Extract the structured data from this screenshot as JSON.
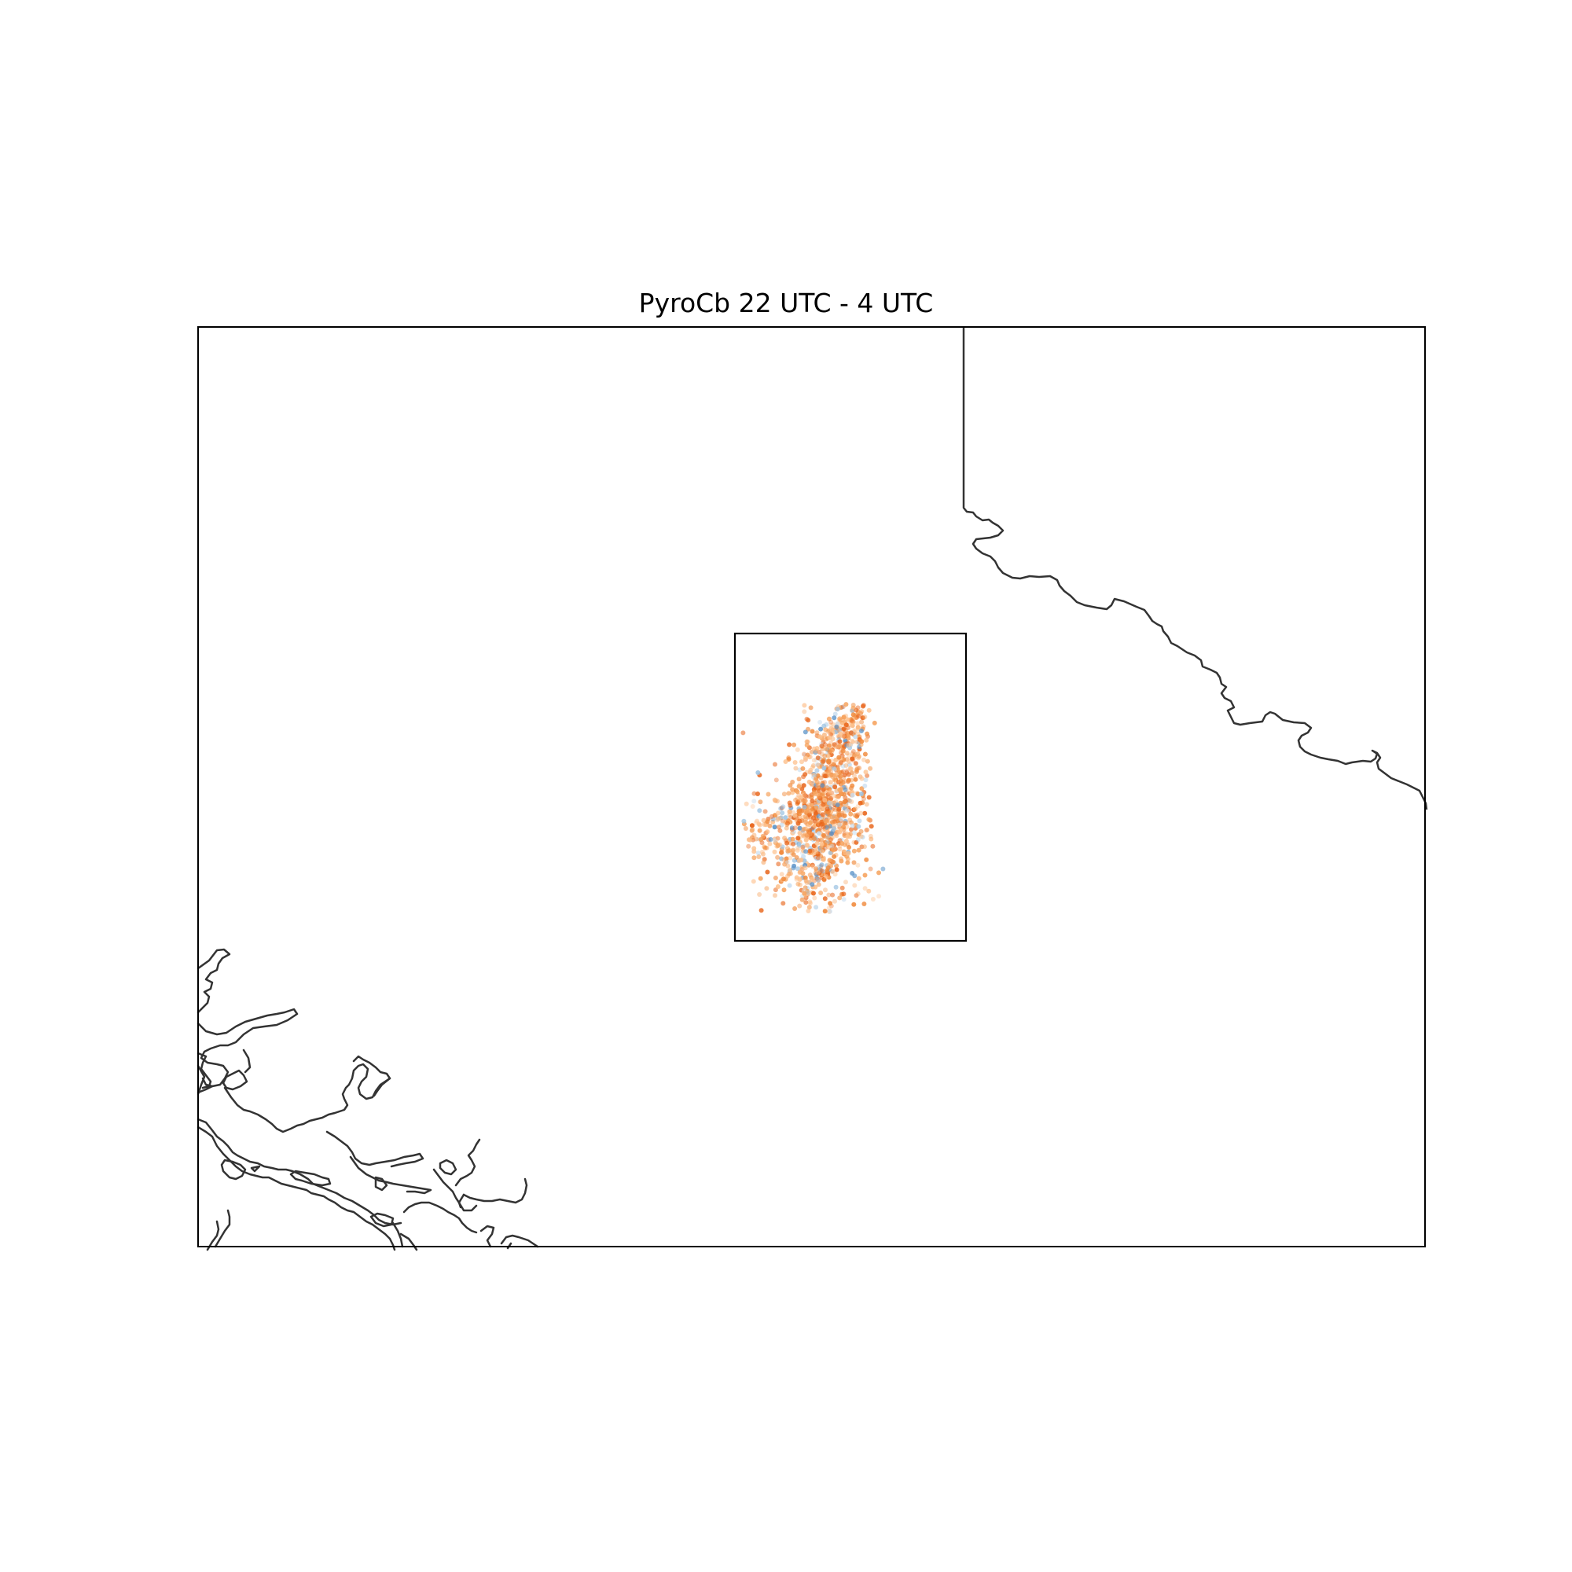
{
  "map": {
    "title": "PyroCb 22 UTC - 4 UTC",
    "colors": {
      "frame": "#000000",
      "coastline": "#333333",
      "points_warm": [
        "#f6a35e",
        "#f08a3c",
        "#e8651b",
        "#fdc08c"
      ],
      "points_cool": [
        "#5b93c8",
        "#9ec4e2",
        "#c6dcef"
      ]
    },
    "layers": [
      "frame",
      "coastline",
      "border",
      "inset-box",
      "scatter-points"
    ]
  }
}
